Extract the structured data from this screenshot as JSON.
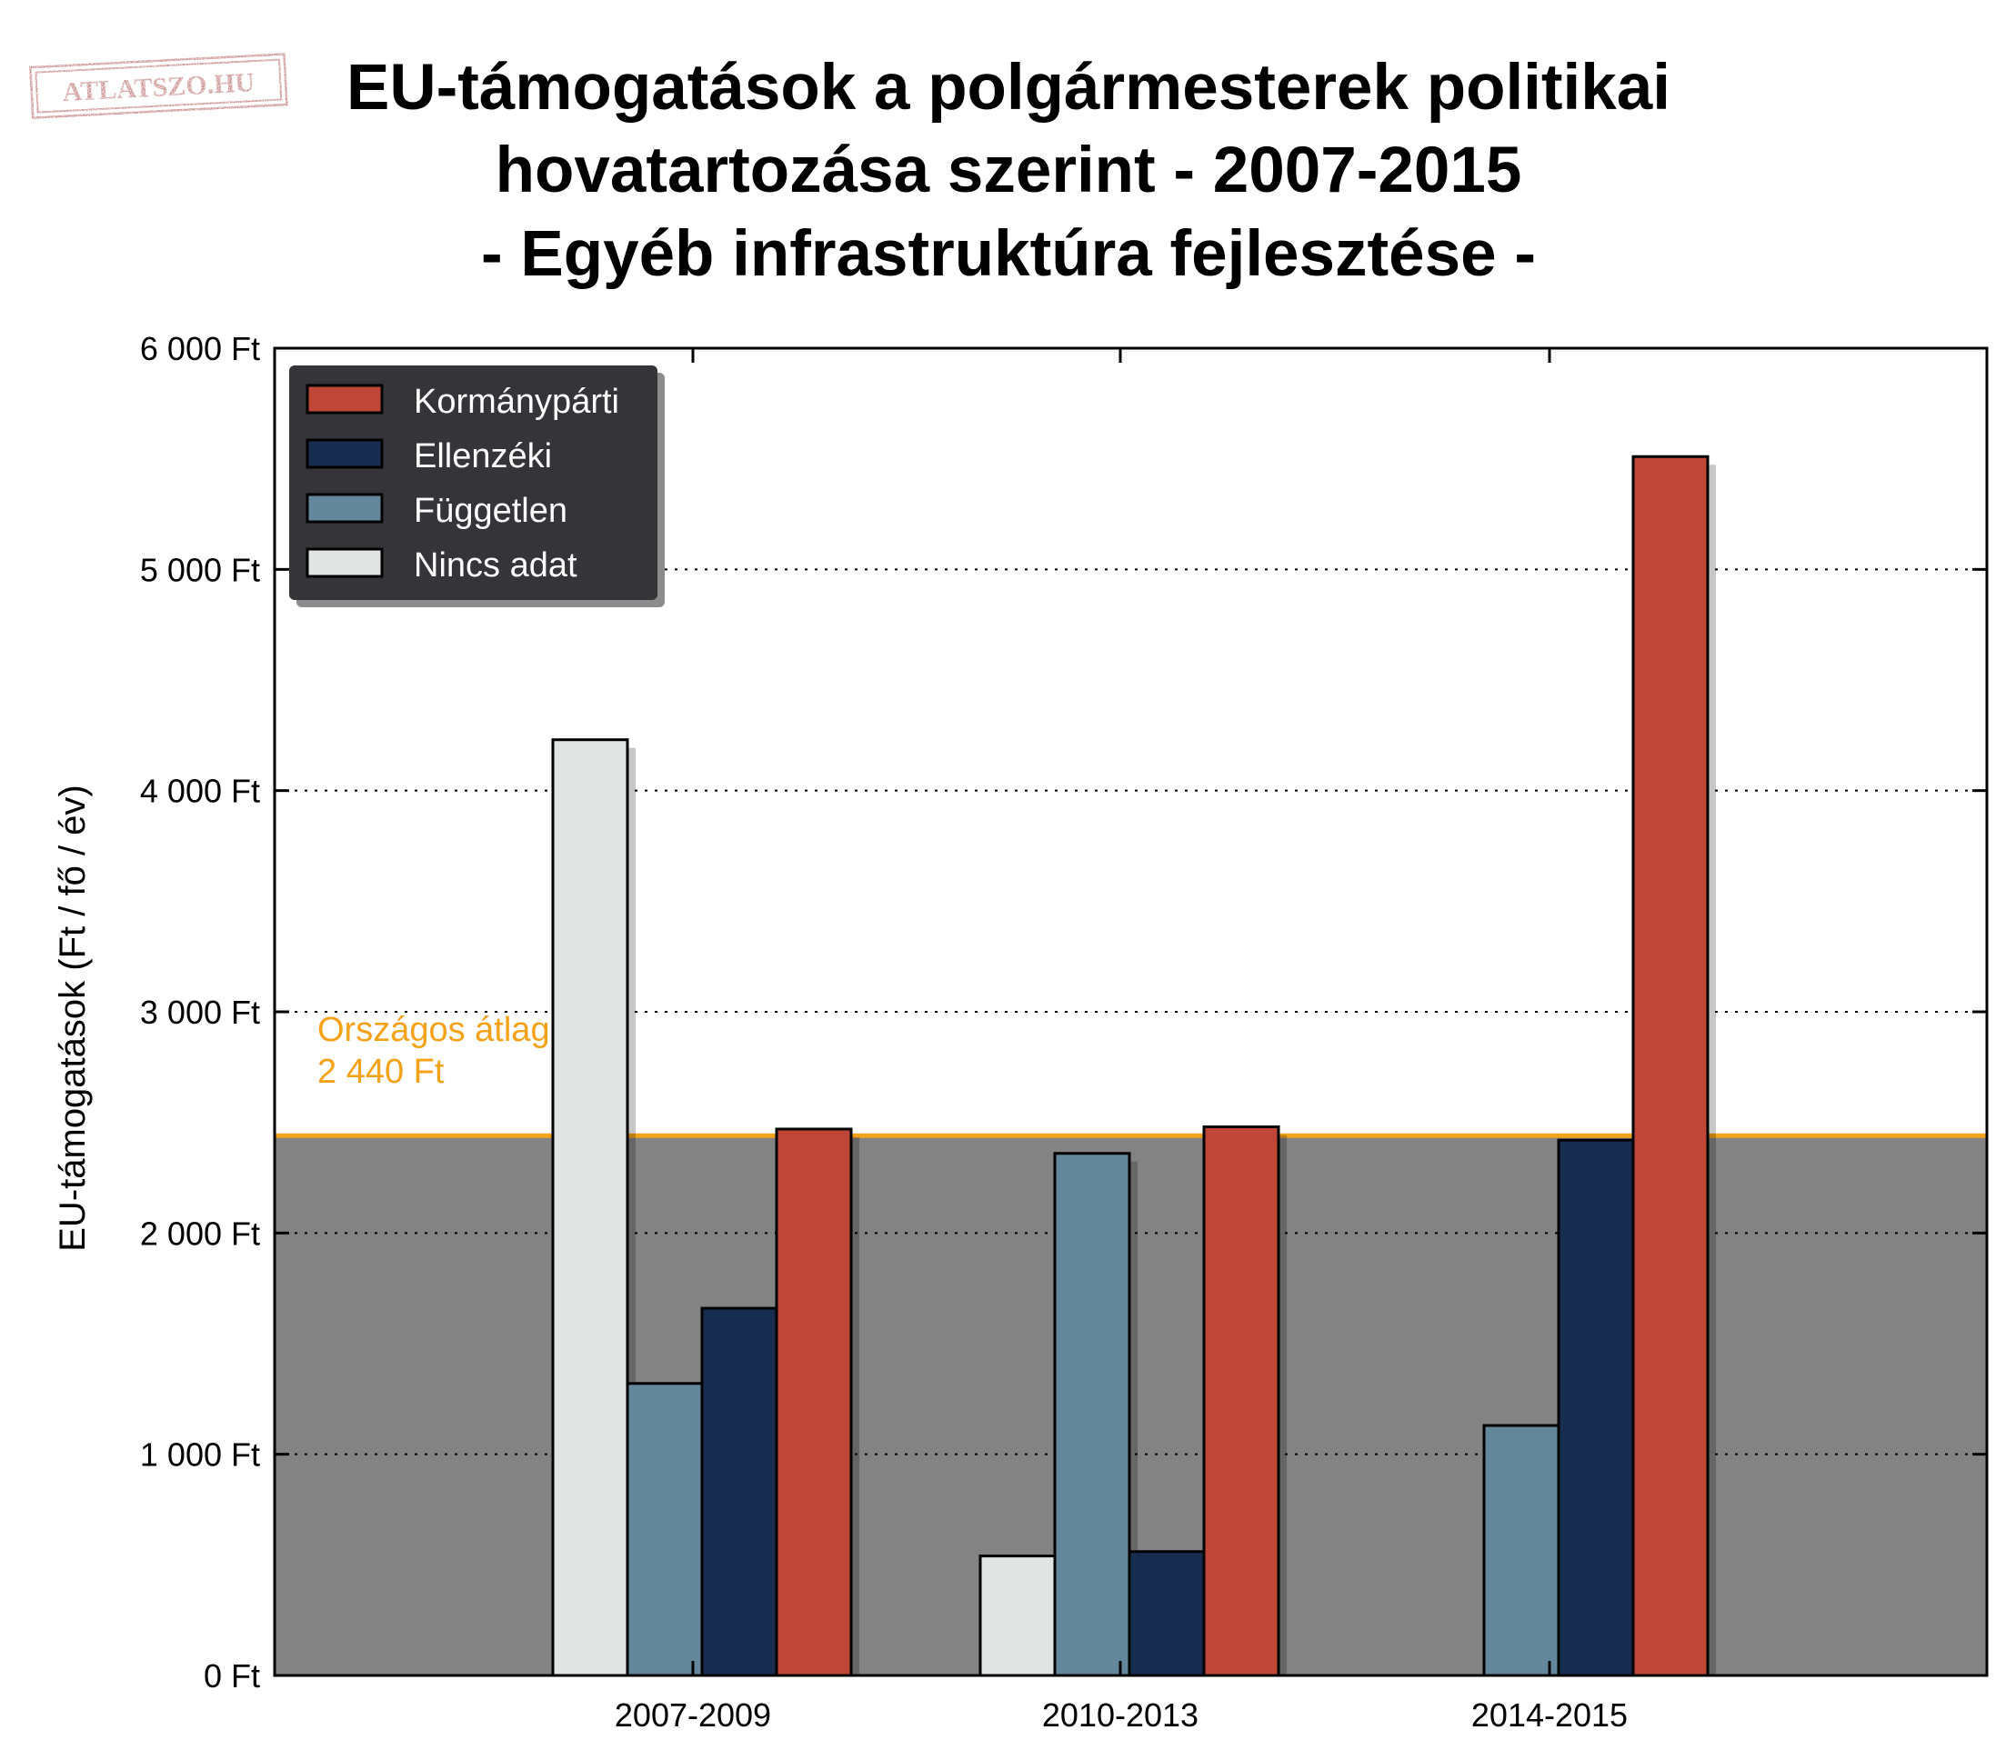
{
  "logo": {
    "text": "ATLATSZO.HU"
  },
  "chart_data": {
    "type": "bar",
    "title_lines": [
      "EU-támogatások a polgármesterek politikai",
      "hovatartozása szerint - 2007-2015",
      "- Egyéb infrastruktúra fejlesztése -"
    ],
    "ylabel": "EU-támogatások (Ft / fő / év)",
    "xlabel": "",
    "ylim": [
      0,
      6000
    ],
    "yticks": [
      0,
      1000,
      2000,
      3000,
      4000,
      5000,
      6000
    ],
    "ytick_labels": [
      "0 Ft",
      "1 000 Ft",
      "2 000 Ft",
      "3 000 Ft",
      "4 000 Ft",
      "5 000 Ft",
      "6 000 Ft"
    ],
    "categories": [
      "2007-2009",
      "2010-2013",
      "2014-2015"
    ],
    "series": [
      {
        "name": "Nincs adat",
        "color": "#e0e5e3",
        "values": [
          4230,
          540,
          0
        ]
      },
      {
        "name": "Független",
        "color": "#64889b",
        "values": [
          1320,
          2360,
          1130
        ]
      },
      {
        "name": "Ellenzéki",
        "color": "#162d50",
        "values": [
          1660,
          560,
          2420
        ]
      },
      {
        "name": "Kormánypárti",
        "color": "#c0463a",
        "values": [
          2470,
          2480,
          5510
        ]
      }
    ],
    "legend": {
      "placement": "top-left",
      "order": [
        "Kormánypárti",
        "Ellenzéki",
        "Független",
        "Nincs adat"
      ]
    },
    "average": {
      "value": 2440,
      "label_line1": "Országos átlag:",
      "label_line2": "2 440 Ft",
      "color": "#f5a21a",
      "shade_color": "#838383"
    },
    "grid": "y-dotted"
  }
}
